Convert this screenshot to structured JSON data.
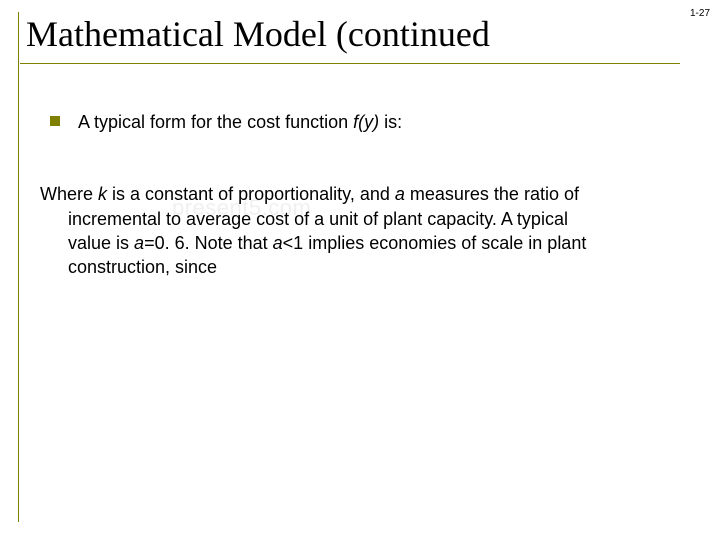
{
  "slide": {
    "number": "1-27",
    "title": "Mathematical Model (continued",
    "bullet_marker_color": "#808000",
    "rule_color": "#808000",
    "content": {
      "bullet1_pre": "A typical form for the cost function ",
      "bullet1_f": "f(y)",
      "bullet1_post": " is:",
      "para_s1": "Where ",
      "para_k": "k",
      "para_s2": " is a constant of proportionality, and ",
      "para_a1": "a",
      "para_s3": " measures the ratio of ",
      "para_line2": "incremental to average cost of a unit of plant capacity. A typical ",
      "para_line3a": "value is ",
      "para_a2": "a",
      "para_line3b": "=0. 6. Note that ",
      "para_a3": "a",
      "para_line3c": "<1 implies economies of scale in plant ",
      "para_line4": "construction, since"
    },
    "watermark": "present5.com"
  },
  "style": {
    "title_fontsize": 36,
    "body_fontsize": 18,
    "slidenum_fontsize": 10,
    "bg": "#ffffff",
    "text_color": "#000000"
  }
}
